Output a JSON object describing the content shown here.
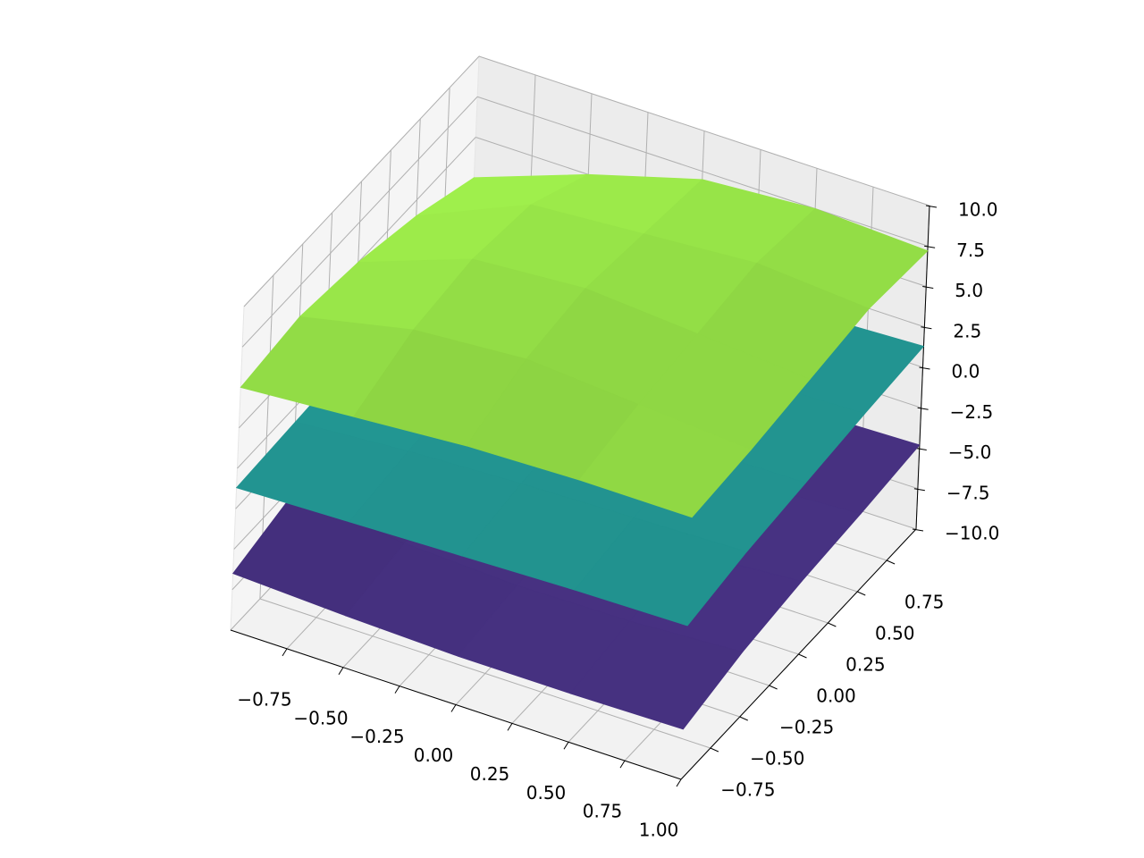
{
  "chart_data": {
    "type": "surface3d",
    "x": [
      -1,
      -0.5,
      0,
      0.5,
      1
    ],
    "y": [
      -1,
      -0.5,
      0,
      0.5,
      1
    ],
    "xlim": [
      -1,
      1
    ],
    "ylim": [
      -1,
      1
    ],
    "zlim": [
      -10,
      10
    ],
    "xticks": [
      {
        "value": -0.75,
        "label": "−0.75"
      },
      {
        "value": -0.5,
        "label": "−0.50"
      },
      {
        "value": -0.25,
        "label": "−0.25"
      },
      {
        "value": 0,
        "label": "0.00"
      },
      {
        "value": 0.25,
        "label": "0.25"
      },
      {
        "value": 0.5,
        "label": "0.50"
      },
      {
        "value": 0.75,
        "label": "0.75"
      },
      {
        "value": 1,
        "label": "1.00"
      }
    ],
    "yticks": [
      {
        "value": -0.75,
        "label": "−0.75"
      },
      {
        "value": -0.5,
        "label": "−0.50"
      },
      {
        "value": -0.25,
        "label": "−0.25"
      },
      {
        "value": 0,
        "label": "0.00"
      },
      {
        "value": 0.25,
        "label": "0.25"
      },
      {
        "value": 0.5,
        "label": "0.50"
      },
      {
        "value": 0.75,
        "label": "0.75"
      }
    ],
    "zticks": [
      {
        "value": -10,
        "label": "−10.0"
      },
      {
        "value": -7.5,
        "label": "−7.5"
      },
      {
        "value": -5,
        "label": "−5.0"
      },
      {
        "value": -2.5,
        "label": "−2.5"
      },
      {
        "value": 0,
        "label": "0.0"
      },
      {
        "value": 2.5,
        "label": "2.5"
      },
      {
        "value": 5,
        "label": "5.0"
      },
      {
        "value": 7.5,
        "label": "7.5"
      },
      {
        "value": 10,
        "label": "10.0"
      }
    ],
    "grid": true,
    "series": [
      {
        "color": "#45307e",
        "values": [
          [
            -6.5,
            -6.8,
            -7.0,
            -7.0,
            -6.9
          ],
          [
            -5.5,
            -6.2,
            -6.5,
            -6.4,
            -6.0
          ],
          [
            -5.0,
            -6.0,
            -6.3,
            -6.0,
            -5.5
          ],
          [
            -5.0,
            -5.8,
            -6.0,
            -5.6,
            -5.2
          ],
          [
            -6.0,
            -5.5,
            -5.2,
            -5.0,
            -4.8
          ]
        ]
      },
      {
        "color": "#21908d",
        "values": [
          [
            -1.2,
            -1.0,
            -0.8,
            -0.6,
            -0.5
          ],
          [
            -1.0,
            -0.5,
            -0.2,
            0.0,
            0.2
          ],
          [
            -0.8,
            -0.2,
            0.2,
            0.5,
            0.6
          ],
          [
            -0.6,
            0.0,
            0.5,
            0.8,
            1.0
          ],
          [
            -0.5,
            0.2,
            0.6,
            1.0,
            1.3
          ]
        ]
      },
      {
        "color": "#8fd744",
        "values": [
          [
            5.0,
            5.5,
            6.0,
            6.2,
            6.2
          ],
          [
            5.5,
            7.0,
            7.5,
            7.0,
            6.5
          ],
          [
            5.0,
            7.5,
            8.0,
            7.5,
            7.0
          ],
          [
            4.0,
            7.0,
            7.5,
            8.0,
            7.5
          ],
          [
            2.5,
            5.0,
            7.0,
            7.5,
            7.2
          ]
        ]
      }
    ]
  }
}
